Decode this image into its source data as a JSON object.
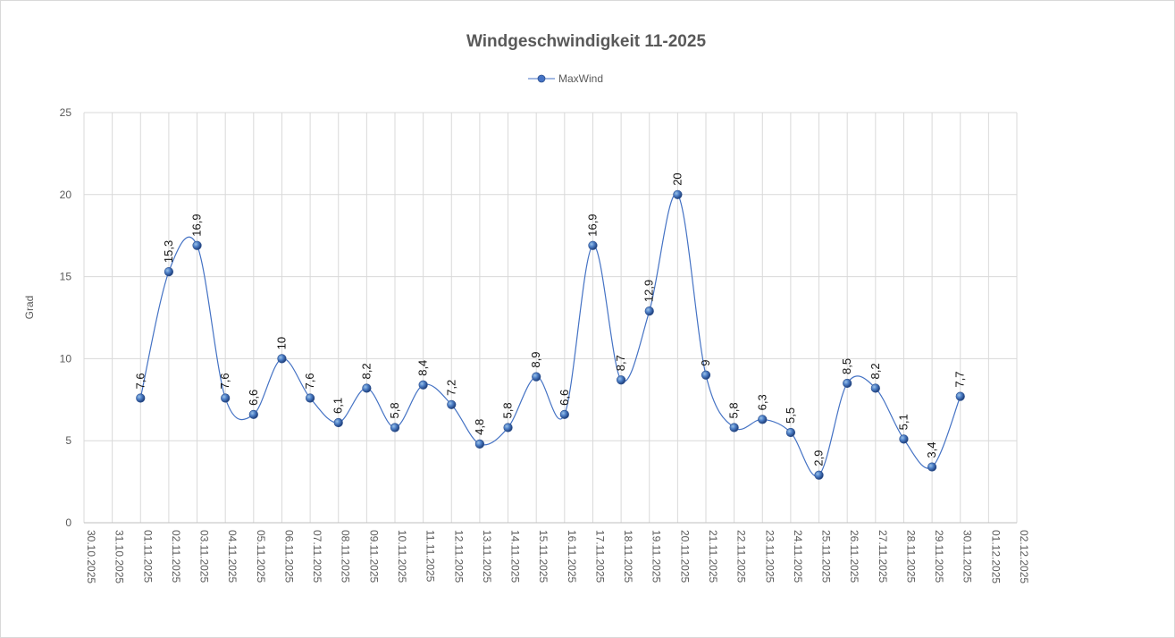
{
  "chart_data": {
    "type": "line",
    "title": "Windgeschwindigkeit  11-2025",
    "xlabel": "",
    "ylabel": "Grad",
    "ylim": [
      0,
      25
    ],
    "yticks": [
      "0",
      "5",
      "10",
      "15",
      "20",
      "25"
    ],
    "grid": true,
    "smooth": true,
    "legend_position": "top",
    "categories": [
      "30.10.2025",
      "31.10.2025",
      "01.11.2025",
      "02.11.2025",
      "03.11.2025",
      "04.11.2025",
      "05.11.2025",
      "06.11.2025",
      "07.11.2025",
      "08.11.2025",
      "09.11.2025",
      "10.11.2025",
      "11.11.2025",
      "12.11.2025",
      "13.11.2025",
      "14.11.2025",
      "15.11.2025",
      "16.11.2025",
      "17.11.2025",
      "18.11.2025",
      "19.11.2025",
      "20.11.2025",
      "21.11.2025",
      "22.11.2025",
      "23.11.2025",
      "24.11.2025",
      "25.11.2025",
      "26.11.2025",
      "27.11.2025",
      "28.11.2025",
      "29.11.2025",
      "30.11.2025",
      "01.12.2025",
      "02.12.2025"
    ],
    "series": [
      {
        "name": "MaxWind",
        "color": "#4472c4",
        "values": [
          null,
          null,
          7.6,
          15.3,
          16.9,
          7.6,
          6.6,
          10,
          7.6,
          6.1,
          8.2,
          5.8,
          8.4,
          7.2,
          4.8,
          5.8,
          8.9,
          6.6,
          16.9,
          8.7,
          12.9,
          20,
          9,
          5.8,
          6.3,
          5.5,
          2.9,
          8.5,
          8.2,
          5.1,
          3.4,
          7.7,
          null,
          null
        ],
        "labels": [
          null,
          null,
          "7,6",
          "15,3",
          "16,9",
          "7,6",
          "6,6",
          "10",
          "7,6",
          "6,1",
          "8,2",
          "5,8",
          "8,4",
          "7,2",
          "4,8",
          "5,8",
          "8,9",
          "6,6",
          "16,9",
          "8,7",
          "12,9",
          "20",
          "9",
          "5,8",
          "6,3",
          "5,5",
          "2,9",
          "8,5",
          "8,2",
          "5,1",
          "3,4",
          "7,7",
          null,
          null
        ]
      }
    ]
  }
}
